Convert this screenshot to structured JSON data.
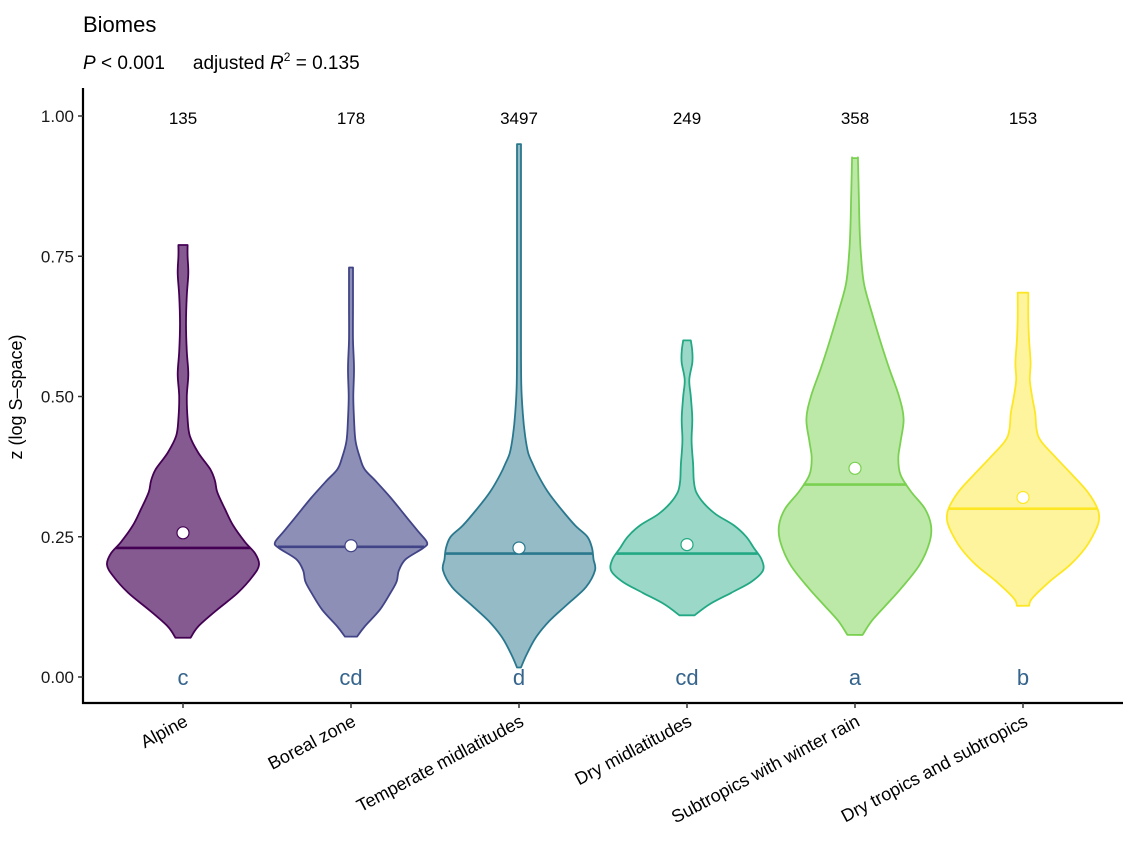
{
  "chart_data": {
    "type": "violin",
    "title": "Biomes",
    "subtitle": {
      "p_prefix": "P",
      "p_text": " < 0.001",
      "r2_prefix": "adjusted ",
      "r2_symbol": "R",
      "r2_exp": "2",
      "r2_text": " =  0.135"
    },
    "xlabel": "",
    "ylabel": "z (log S–space)",
    "ylim": [
      -0.05,
      1.05
    ],
    "yticks": [
      0.0,
      0.25,
      0.5,
      0.75,
      1.0
    ],
    "ytick_labels": [
      "0.00",
      "0.25",
      "0.50",
      "0.75",
      "1.00"
    ],
    "grid": false,
    "legend": "none",
    "letter_color": "#35648c",
    "median_label": "line",
    "mean_label": "white dot",
    "categories": [
      "Alpine",
      "Boreal zone",
      "Temperate midlatitudes",
      "Dry midlatitudes",
      "Subtropics with winter rain",
      "Dry tropics and subtropics"
    ],
    "series": [
      {
        "name": "Alpine",
        "n": "135",
        "letter": "c",
        "color": "#440154",
        "fill_opacity": 0.65,
        "median": 0.23,
        "mean": 0.257,
        "min": 0.07,
        "max": 0.77,
        "density": [
          [
            0.07,
            0.1
          ],
          [
            0.09,
            0.2
          ],
          [
            0.12,
            0.45
          ],
          [
            0.15,
            0.72
          ],
          [
            0.18,
            0.92
          ],
          [
            0.2,
            1.0
          ],
          [
            0.22,
            0.95
          ],
          [
            0.24,
            0.82
          ],
          [
            0.27,
            0.66
          ],
          [
            0.3,
            0.55
          ],
          [
            0.33,
            0.45
          ],
          [
            0.35,
            0.42
          ],
          [
            0.37,
            0.36
          ],
          [
            0.4,
            0.2
          ],
          [
            0.43,
            0.09
          ],
          [
            0.46,
            0.06
          ],
          [
            0.5,
            0.05
          ],
          [
            0.54,
            0.07
          ],
          [
            0.58,
            0.05
          ],
          [
            0.63,
            0.04
          ],
          [
            0.68,
            0.05
          ],
          [
            0.72,
            0.07
          ],
          [
            0.75,
            0.06
          ],
          [
            0.77,
            0.06
          ]
        ]
      },
      {
        "name": "Boreal zone",
        "n": "178",
        "letter": "cd",
        "color": "#414487",
        "fill_opacity": 0.6,
        "median": 0.232,
        "mean": 0.234,
        "min": 0.072,
        "max": 0.73,
        "density": [
          [
            0.072,
            0.08
          ],
          [
            0.09,
            0.18
          ],
          [
            0.12,
            0.38
          ],
          [
            0.15,
            0.52
          ],
          [
            0.17,
            0.6
          ],
          [
            0.19,
            0.63
          ],
          [
            0.21,
            0.72
          ],
          [
            0.23,
            0.95
          ],
          [
            0.24,
            1.0
          ],
          [
            0.26,
            0.88
          ],
          [
            0.29,
            0.7
          ],
          [
            0.32,
            0.52
          ],
          [
            0.35,
            0.32
          ],
          [
            0.37,
            0.18
          ],
          [
            0.39,
            0.12
          ],
          [
            0.42,
            0.06
          ],
          [
            0.46,
            0.04
          ],
          [
            0.5,
            0.03
          ],
          [
            0.55,
            0.04
          ],
          [
            0.6,
            0.02
          ],
          [
            0.66,
            0.02
          ],
          [
            0.7,
            0.02
          ],
          [
            0.73,
            0.02
          ]
        ]
      },
      {
        "name": "Temperate midlatitudes",
        "n": "3497",
        "letter": "d",
        "color": "#2A788E",
        "fill_opacity": 0.5,
        "median": 0.22,
        "mean": 0.23,
        "min": 0.017,
        "max": 0.95,
        "density": [
          [
            0.017,
            0.02
          ],
          [
            0.04,
            0.1
          ],
          [
            0.07,
            0.22
          ],
          [
            0.1,
            0.4
          ],
          [
            0.13,
            0.64
          ],
          [
            0.16,
            0.88
          ],
          [
            0.19,
            1.0
          ],
          [
            0.21,
            0.98
          ],
          [
            0.23,
            0.96
          ],
          [
            0.25,
            0.9
          ],
          [
            0.27,
            0.74
          ],
          [
            0.3,
            0.55
          ],
          [
            0.33,
            0.38
          ],
          [
            0.36,
            0.25
          ],
          [
            0.38,
            0.18
          ],
          [
            0.4,
            0.12
          ],
          [
            0.43,
            0.08
          ],
          [
            0.47,
            0.05
          ],
          [
            0.52,
            0.03
          ],
          [
            0.6,
            0.02
          ],
          [
            0.7,
            0.015
          ],
          [
            0.8,
            0.012
          ],
          [
            0.9,
            0.01
          ],
          [
            0.95,
            0.01
          ]
        ]
      },
      {
        "name": "Dry midlatitudes",
        "n": "249",
        "letter": "cd",
        "color": "#22A884",
        "fill_opacity": 0.45,
        "median": 0.22,
        "mean": 0.236,
        "min": 0.11,
        "max": 0.6,
        "density": [
          [
            0.11,
            0.1
          ],
          [
            0.13,
            0.3
          ],
          [
            0.15,
            0.58
          ],
          [
            0.17,
            0.85
          ],
          [
            0.19,
            1.0
          ],
          [
            0.21,
            0.98
          ],
          [
            0.23,
            0.88
          ],
          [
            0.25,
            0.78
          ],
          [
            0.27,
            0.62
          ],
          [
            0.29,
            0.38
          ],
          [
            0.31,
            0.22
          ],
          [
            0.33,
            0.12
          ],
          [
            0.35,
            0.09
          ],
          [
            0.38,
            0.08
          ],
          [
            0.42,
            0.06
          ],
          [
            0.46,
            0.07
          ],
          [
            0.5,
            0.05
          ],
          [
            0.53,
            0.03
          ],
          [
            0.56,
            0.07
          ],
          [
            0.58,
            0.07
          ],
          [
            0.6,
            0.05
          ]
        ]
      },
      {
        "name": "Subtropics with winter rain",
        "n": "358",
        "letter": "a",
        "color": "#7AD151",
        "fill_opacity": 0.5,
        "median": 0.343,
        "mean": 0.372,
        "min": 0.075,
        "max": 0.925,
        "density": [
          [
            0.075,
            0.1
          ],
          [
            0.1,
            0.22
          ],
          [
            0.13,
            0.42
          ],
          [
            0.16,
            0.62
          ],
          [
            0.2,
            0.85
          ],
          [
            0.24,
            0.98
          ],
          [
            0.27,
            1.0
          ],
          [
            0.3,
            0.92
          ],
          [
            0.33,
            0.74
          ],
          [
            0.36,
            0.6
          ],
          [
            0.39,
            0.57
          ],
          [
            0.42,
            0.6
          ],
          [
            0.46,
            0.64
          ],
          [
            0.5,
            0.58
          ],
          [
            0.55,
            0.45
          ],
          [
            0.6,
            0.33
          ],
          [
            0.65,
            0.22
          ],
          [
            0.7,
            0.12
          ],
          [
            0.75,
            0.08
          ],
          [
            0.8,
            0.06
          ],
          [
            0.86,
            0.05
          ],
          [
            0.92,
            0.04
          ],
          [
            0.925,
            0.04
          ]
        ]
      },
      {
        "name": "Dry tropics and subtropics",
        "n": "153",
        "letter": "b",
        "color": "#FDE725",
        "fill_opacity": 0.45,
        "median": 0.3,
        "mean": 0.32,
        "min": 0.127,
        "max": 0.685,
        "density": [
          [
            0.127,
            0.08
          ],
          [
            0.14,
            0.12
          ],
          [
            0.17,
            0.35
          ],
          [
            0.2,
            0.62
          ],
          [
            0.23,
            0.82
          ],
          [
            0.26,
            0.95
          ],
          [
            0.28,
            1.0
          ],
          [
            0.3,
            0.98
          ],
          [
            0.33,
            0.85
          ],
          [
            0.36,
            0.65
          ],
          [
            0.39,
            0.44
          ],
          [
            0.42,
            0.24
          ],
          [
            0.44,
            0.18
          ],
          [
            0.47,
            0.16
          ],
          [
            0.5,
            0.12
          ],
          [
            0.53,
            0.09
          ],
          [
            0.56,
            0.1
          ],
          [
            0.6,
            0.08
          ],
          [
            0.64,
            0.07
          ],
          [
            0.68,
            0.07
          ],
          [
            0.685,
            0.07
          ]
        ]
      }
    ]
  }
}
